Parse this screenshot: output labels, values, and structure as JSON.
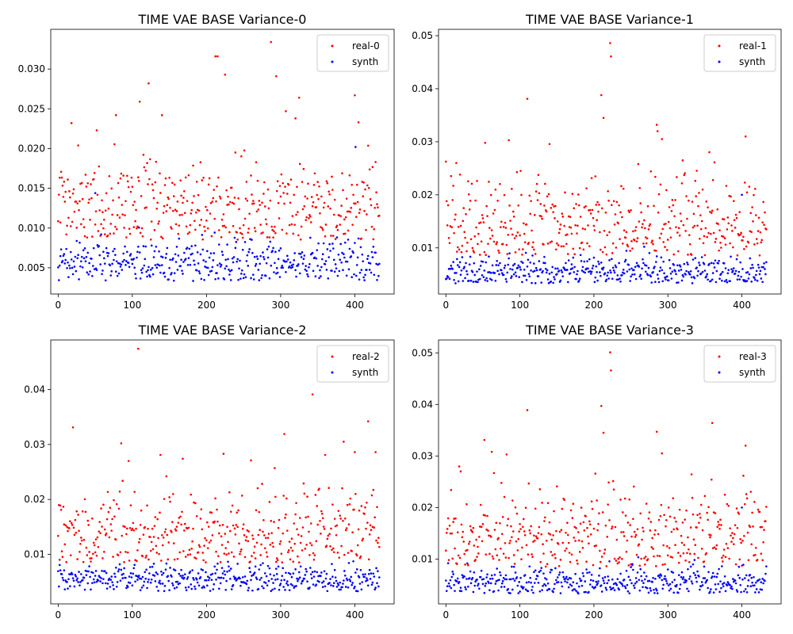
{
  "chart_data": [
    {
      "type": "scatter",
      "title": "TIME VAE BASE Variance-0",
      "xlabel": "",
      "ylabel": "",
      "xlim": [
        -10,
        453
      ],
      "ylim": [
        0.0017,
        0.035
      ],
      "xticks": [
        0,
        100,
        200,
        300,
        400
      ],
      "xtick_labels": [
        "0",
        "100",
        "200",
        "300",
        "400"
      ],
      "yticks": [
        0.005,
        0.01,
        0.015,
        0.02,
        0.025,
        0.03
      ],
      "ytick_labels": [
        "0.005",
        "0.010",
        "0.015",
        "0.020",
        "0.025",
        "0.030"
      ],
      "legend": "top-right",
      "n_points": 434,
      "series": [
        {
          "name": "real-0",
          "color": "#ff0000",
          "center": 0.0125,
          "spread": 0.0033,
          "min": 0.0085,
          "outliers": [
            [
              18,
              0.0232
            ],
            [
              52,
              0.0223
            ],
            [
              78,
              0.0242
            ],
            [
              110,
              0.0259
            ],
            [
              122,
              0.0282
            ],
            [
              140,
              0.0242
            ],
            [
              212,
              0.0316
            ],
            [
              215,
              0.0316
            ],
            [
              225,
              0.0293
            ],
            [
              287,
              0.0334
            ],
            [
              294,
              0.0291
            ],
            [
              307,
              0.0247
            ],
            [
              320,
              0.0238
            ],
            [
              325,
              0.0264
            ],
            [
              400,
              0.0267
            ],
            [
              405,
              0.0233
            ]
          ]
        },
        {
          "name": "synth",
          "color": "#0000ff",
          "center": 0.0055,
          "spread": 0.0014,
          "min": 0.0033,
          "outliers": [
            [
              401,
              0.0202
            ],
            [
              50,
              0.0144
            ]
          ]
        }
      ]
    },
    {
      "type": "scatter",
      "title": "TIME VAE BASE Variance-1",
      "xlabel": "",
      "ylabel": "",
      "xlim": [
        -10,
        453
      ],
      "ylim": [
        0.0013,
        0.0512
      ],
      "xticks": [
        0,
        100,
        200,
        300,
        400
      ],
      "xtick_labels": [
        "0",
        "100",
        "200",
        "300",
        "400"
      ],
      "yticks": [
        0.01,
        0.02,
        0.03,
        0.04,
        0.05
      ],
      "ytick_labels": [
        "0.01",
        "0.02",
        "0.03",
        "0.04",
        "0.05"
      ],
      "legend": "top-right",
      "n_points": 434,
      "series": [
        {
          "name": "real-1",
          "color": "#ff0000",
          "center": 0.0145,
          "spread": 0.0045,
          "min": 0.0085,
          "outliers": [
            [
              14,
              0.026
            ],
            [
              53,
              0.0298
            ],
            [
              85,
              0.0303
            ],
            [
              110,
              0.0381
            ],
            [
              210,
              0.0388
            ],
            [
              213,
              0.0345
            ],
            [
              222,
              0.0486
            ],
            [
              223,
              0.0461
            ],
            [
              260,
              0.0258
            ],
            [
              285,
              0.0332
            ],
            [
              286,
              0.032
            ],
            [
              292,
              0.0305
            ],
            [
              320,
              0.0265
            ],
            [
              405,
              0.031
            ]
          ]
        },
        {
          "name": "synth",
          "color": "#0000ff",
          "center": 0.0055,
          "spread": 0.0015,
          "min": 0.0033,
          "outliers": [
            [
              400,
              0.02
            ]
          ]
        }
      ]
    },
    {
      "type": "scatter",
      "title": "TIME VAE BASE Variance-2",
      "xlabel": "",
      "ylabel": "",
      "xlim": [
        -10,
        453
      ],
      "ylim": [
        0.001,
        0.049
      ],
      "xticks": [
        0,
        100,
        200,
        300,
        400
      ],
      "xtick_labels": [
        "0",
        "100",
        "200",
        "300",
        "400"
      ],
      "yticks": [
        0.01,
        0.02,
        0.03,
        0.04
      ],
      "ytick_labels": [
        "0.01",
        "0.02",
        "0.03",
        "0.04"
      ],
      "legend": "top-right",
      "n_points": 434,
      "series": [
        {
          "name": "real-2",
          "color": "#ff0000",
          "center": 0.0135,
          "spread": 0.004,
          "min": 0.0085,
          "outliers": [
            [
              20,
              0.0331
            ],
            [
              85,
              0.0302
            ],
            [
              95,
              0.027
            ],
            [
              108,
              0.0474
            ],
            [
              138,
              0.0281
            ],
            [
              168,
              0.0274
            ],
            [
              223,
              0.0283
            ],
            [
              260,
              0.0271
            ],
            [
              292,
              0.0257
            ],
            [
              305,
              0.0319
            ],
            [
              343,
              0.0391
            ],
            [
              360,
              0.0281
            ],
            [
              385,
              0.0305
            ],
            [
              400,
              0.0286
            ],
            [
              418,
              0.0342
            ],
            [
              428,
              0.0286
            ]
          ]
        },
        {
          "name": "synth",
          "color": "#0000ff",
          "center": 0.0055,
          "spread": 0.0014,
          "min": 0.0033,
          "outliers": []
        }
      ]
    },
    {
      "type": "scatter",
      "title": "TIME VAE BASE Variance-3",
      "xlabel": "",
      "ylabel": "",
      "xlim": [
        -10,
        453
      ],
      "ylim": [
        0.0013,
        0.0525
      ],
      "xticks": [
        0,
        100,
        200,
        300,
        400
      ],
      "xtick_labels": [
        "0",
        "100",
        "200",
        "300",
        "400"
      ],
      "yticks": [
        0.01,
        0.02,
        0.03,
        0.04,
        0.05
      ],
      "ytick_labels": [
        "0.01",
        "0.02",
        "0.03",
        "0.04",
        "0.05"
      ],
      "legend": "top-right",
      "n_points": 434,
      "series": [
        {
          "name": "real-3",
          "color": "#ff0000",
          "center": 0.0145,
          "spread": 0.0045,
          "min": 0.0085,
          "outliers": [
            [
              20,
              0.027
            ],
            [
              52,
              0.0331
            ],
            [
              62,
              0.0308
            ],
            [
              82,
              0.0303
            ],
            [
              110,
              0.0389
            ],
            [
              210,
              0.0397
            ],
            [
              213,
              0.0345
            ],
            [
              222,
              0.0501
            ],
            [
              223,
              0.0466
            ],
            [
              285,
              0.0347
            ],
            [
              292,
              0.0305
            ],
            [
              360,
              0.0364
            ],
            [
              405,
              0.032
            ]
          ]
        },
        {
          "name": "synth",
          "color": "#0000ff",
          "center": 0.0055,
          "spread": 0.0015,
          "min": 0.0033,
          "outliers": [
            [
              400,
              0.02
            ]
          ]
        }
      ]
    }
  ]
}
